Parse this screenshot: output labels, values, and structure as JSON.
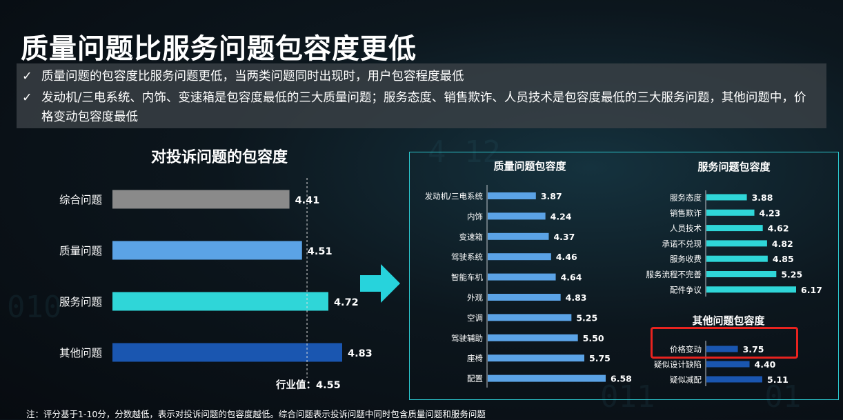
{
  "title": "质量问题比服务问题包容度更低",
  "summary": {
    "check_icon": "✓",
    "bullets": [
      "质量问题的包容度比服务问题更低，当两类问题同时出现时，用户包容程度最低",
      "发动机/三电系统、内饰、变速箱是包容度最低的三大质量问题；服务态度、销售欺诈、人员技术是包容度最低的三大服务问题，其他问题中，价格变动包容度最低"
    ]
  },
  "footnote": "注：评分基于1-10分，分数越低，表示对投诉问题的包容度越低。综合问题表示投诉问题中同时包含质量问题和服务问题",
  "colors": {
    "gray": "#8a8a8a",
    "lightblue": "#5ba3e6",
    "cyan": "#2fd6d8",
    "darkblue": "#1a56b0",
    "highlight": "#e8231f",
    "arrow": "#27d3dc"
  },
  "chart_data": [
    {
      "type": "bar",
      "orientation": "horizontal",
      "title": "对投诉问题的包容度",
      "categories": [
        "综合问题",
        "质量问题",
        "服务问题",
        "其他问题"
      ],
      "values": [
        4.41,
        4.51,
        4.72,
        4.83
      ],
      "bar_colors": [
        "#8a8a8a",
        "#5ba3e6",
        "#2fd6d8",
        "#1a56b0"
      ],
      "reference_line": {
        "label": "行业值：4.55",
        "value": 4.55
      }
    },
    {
      "type": "bar",
      "orientation": "horizontal",
      "title": "质量问题包容度",
      "categories": [
        "发动机/三电系统",
        "内饰",
        "变速箱",
        "驾驶系统",
        "智能车机",
        "外观",
        "空调",
        "驾驶辅助",
        "座椅",
        "配置"
      ],
      "values": [
        3.87,
        4.24,
        4.37,
        4.46,
        4.64,
        4.83,
        5.25,
        5.5,
        5.75,
        6.58
      ],
      "bar_color": "#5ba3e6"
    },
    {
      "type": "bar",
      "orientation": "horizontal",
      "title": "服务问题包容度",
      "categories": [
        "服务态度",
        "销售欺诈",
        "人员技术",
        "承诺不兑现",
        "服务收费",
        "服务流程不完善",
        "配件争议"
      ],
      "values": [
        3.88,
        4.23,
        4.62,
        4.82,
        4.85,
        5.25,
        6.17
      ],
      "bar_color": "#2fd6d8"
    },
    {
      "type": "bar",
      "orientation": "horizontal",
      "title": "其他问题包容度",
      "categories": [
        "价格变动",
        "疑似设计缺陷",
        "疑似减配"
      ],
      "values": [
        3.75,
        4.4,
        5.11
      ],
      "bar_color": "#1a56b0",
      "highlighted_category": "价格变动"
    }
  ]
}
